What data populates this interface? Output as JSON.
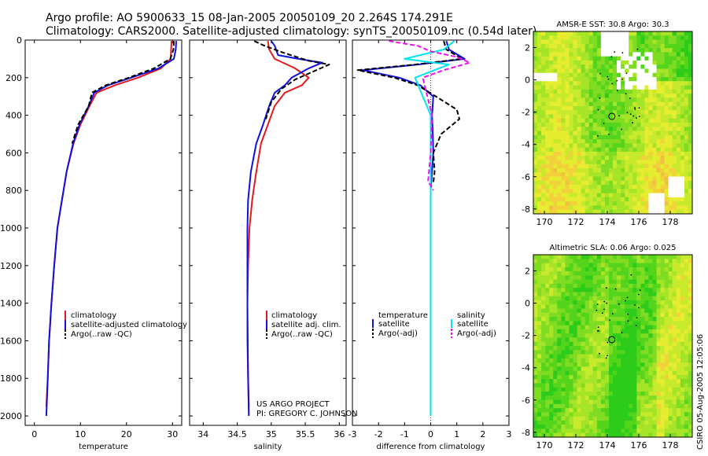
{
  "titles": {
    "line1": "Argo profile: AO 5900633_15 08-Jan-2005 20050109_20 2.264S 174.291E",
    "line2": "Climatology: CARS2000. Satellite-adjusted climatology: synTS_20050109.nc (0.54d later)"
  },
  "footer": {
    "project": "US ARGO PROJECT",
    "pi": "PI: GREGORY C. JOHNSON",
    "stamp": "CSIRO 05-Aug-2005 12:05:06"
  },
  "colors": {
    "climatology": "#e41a1c",
    "satellite": "#1010e0",
    "argo": "#000000",
    "cyan": "#00e5ee",
    "magenta": "#ee10ee"
  },
  "chart_data": [
    {
      "id": "temperature",
      "type": "line",
      "xlabel": "temperature",
      "ylabel": "",
      "xlim": [
        -2,
        32
      ],
      "ylim": [
        2050,
        0
      ],
      "xticks": [
        0,
        10,
        20,
        30
      ],
      "yticks": [
        0,
        200,
        400,
        600,
        800,
        1000,
        1200,
        1400,
        1600,
        1800,
        2000
      ],
      "legend": {
        "placement": "lower-middle",
        "entries": [
          "climatology",
          "satellite-adjusted climatology",
          "Argo(..raw -QC)"
        ]
      },
      "series": [
        {
          "name": "climatology",
          "color_key": "climatology",
          "dash": false,
          "x": [
            29.8,
            29.7,
            29.6,
            27.5,
            22.5,
            17.5,
            13.5,
            12.0,
            10.0,
            8.5,
            7.0,
            6.0,
            5.0,
            4.3,
            3.7,
            3.2,
            2.9,
            2.6
          ],
          "y": [
            5,
            50,
            100,
            150,
            200,
            240,
            280,
            350,
            450,
            550,
            700,
            850,
            1000,
            1200,
            1400,
            1600,
            1800,
            1950
          ]
        },
        {
          "name": "satellite-adjusted climatology",
          "color_key": "satellite",
          "dash": false,
          "x": [
            30.8,
            30.7,
            30.3,
            27.0,
            21.0,
            16.0,
            13.0,
            11.8,
            9.8,
            8.4,
            7.0,
            6.0,
            5.0,
            4.3,
            3.7,
            3.2,
            2.9,
            2.6
          ],
          "y": [
            5,
            50,
            100,
            150,
            200,
            240,
            280,
            350,
            450,
            550,
            700,
            850,
            1000,
            1200,
            1400,
            1600,
            1800,
            2000
          ]
        },
        {
          "name": "Argo(..raw -QC)",
          "color_key": "argo",
          "dash": true,
          "x": [
            30.3,
            30.2,
            29.5,
            26.0,
            20.5,
            15.5,
            12.5,
            11.8,
            9.5,
            8.2
          ],
          "y": [
            5,
            50,
            100,
            150,
            200,
            240,
            280,
            350,
            450,
            550
          ]
        }
      ]
    },
    {
      "id": "salinity",
      "type": "line",
      "xlabel": "salinity",
      "xlim": [
        33.8,
        36.1
      ],
      "ylim": [
        2050,
        0
      ],
      "xticks": [
        34,
        34.5,
        35,
        35.5,
        36
      ],
      "xticklabels": [
        "34",
        "34.5",
        "35",
        "35.5",
        "36"
      ],
      "legend": {
        "placement": "lower-middle",
        "entries": [
          "climatology",
          "satellite adj. clim.",
          "Argo(..raw -QC)"
        ]
      },
      "series": [
        {
          "name": "climatology",
          "color_key": "climatology",
          "dash": false,
          "x": [
            34.95,
            34.97,
            35.05,
            35.35,
            35.55,
            35.45,
            35.2,
            35.05,
            34.95,
            34.85,
            34.78,
            34.72,
            34.68,
            34.66,
            34.65,
            34.65,
            34.66,
            34.67
          ],
          "y": [
            5,
            50,
            100,
            150,
            200,
            240,
            280,
            350,
            450,
            550,
            700,
            850,
            1000,
            1200,
            1400,
            1600,
            1800,
            1950
          ]
        },
        {
          "name": "satellite adj. clim.",
          "color_key": "satellite",
          "dash": false,
          "x": [
            35.0,
            35.05,
            35.1,
            35.4,
            35.75,
            35.55,
            35.3,
            35.2,
            35.05,
            34.97,
            34.88,
            34.78,
            34.7,
            34.66,
            34.65,
            34.65,
            34.66,
            34.67
          ],
          "y": [
            5,
            30,
            80,
            100,
            120,
            150,
            200,
            240,
            280,
            350,
            450,
            550,
            700,
            850,
            1000,
            1400,
            1800,
            2000
          ]
        },
        {
          "name": "Argo(..raw -QC)",
          "color_key": "argo",
          "dash": true,
          "x": [
            34.75,
            34.9,
            35.2,
            35.55,
            35.85,
            35.6,
            35.35,
            35.15,
            35.0,
            34.92
          ],
          "y": [
            5,
            30,
            70,
            110,
            130,
            170,
            210,
            260,
            330,
            420
          ]
        }
      ]
    },
    {
      "id": "difference",
      "type": "line",
      "xlabel": "difference from climatology",
      "xlim": [
        -3,
        3
      ],
      "ylim": [
        2050,
        0
      ],
      "xticks": [
        -3,
        -2,
        -1,
        0,
        1,
        2,
        3
      ],
      "legend": {
        "placement": "lower-middle",
        "left_header": "temperature",
        "right_header": "salinity",
        "entries": [
          "satellite",
          "Argo(-adj)",
          "satellite",
          "Argo(-adj)"
        ]
      },
      "series": [
        {
          "name": "temperature satellite",
          "color_key": "satellite",
          "dash": false,
          "x": [
            0.6,
            0.7,
            1.3,
            -0.5,
            -2.6,
            -1.2,
            -0.4,
            0.1,
            0.05,
            0.08,
            0.1,
            0.05,
            0.0,
            0.0,
            0.0,
            0.0
          ],
          "y": [
            5,
            50,
            100,
            130,
            160,
            200,
            240,
            300,
            400,
            500,
            600,
            700,
            800,
            1200,
            1600,
            2000
          ]
        },
        {
          "name": "temperature Argo(-adj)",
          "color_key": "argo",
          "dash": true,
          "x": [
            0.5,
            0.6,
            1.2,
            -0.6,
            -2.8,
            -1.4,
            -0.5,
            0.2,
            1.0,
            1.1,
            0.4,
            0.1,
            0.15,
            0.1
          ],
          "y": [
            5,
            50,
            100,
            130,
            160,
            200,
            240,
            300,
            370,
            420,
            500,
            600,
            700,
            760
          ]
        },
        {
          "name": "salinity satellite",
          "color_key": "cyan",
          "dash": false,
          "x": [
            0.9,
            0.5,
            -1.0,
            0.7,
            -0.6,
            -0.3,
            0.0,
            0.0,
            0.0,
            0.0,
            0.0
          ],
          "y": [
            5,
            50,
            100,
            130,
            200,
            300,
            400,
            600,
            1000,
            1500,
            2000
          ]
        },
        {
          "name": "salinity Argo(-adj)",
          "color_key": "magenta",
          "dash": true,
          "x": [
            -1.6,
            -0.5,
            0.0,
            1.0,
            1.5,
            0.5,
            -0.3,
            -0.2,
            0.05,
            0.0,
            -0.1,
            0.1
          ],
          "y": [
            5,
            30,
            60,
            90,
            120,
            160,
            200,
            260,
            400,
            600,
            750,
            800
          ]
        }
      ]
    }
  ],
  "maps": [
    {
      "id": "sst",
      "title": "AMSR-E SST: 30.8 Argo: 30.3",
      "type": "heatmap",
      "xticks": [
        170,
        172,
        174,
        176,
        178
      ],
      "yticks": [
        2,
        0,
        -2,
        -4,
        -6,
        -8
      ],
      "lon_range": [
        169.3,
        179.4
      ],
      "lat_range": [
        -8.3,
        3.0
      ],
      "float_position": {
        "lon": 174.29,
        "lat": -2.26
      }
    },
    {
      "id": "sla",
      "title": "Altimetric SLA: 0.06 Argo: 0.025",
      "type": "heatmap",
      "xticks": [
        170,
        172,
        174,
        176,
        178
      ],
      "yticks": [
        2,
        0,
        -2,
        -4,
        -6,
        -8
      ],
      "lon_range": [
        169.3,
        179.4
      ],
      "lat_range": [
        -8.3,
        3.0
      ],
      "float_position": {
        "lon": 174.29,
        "lat": -2.26
      }
    }
  ]
}
